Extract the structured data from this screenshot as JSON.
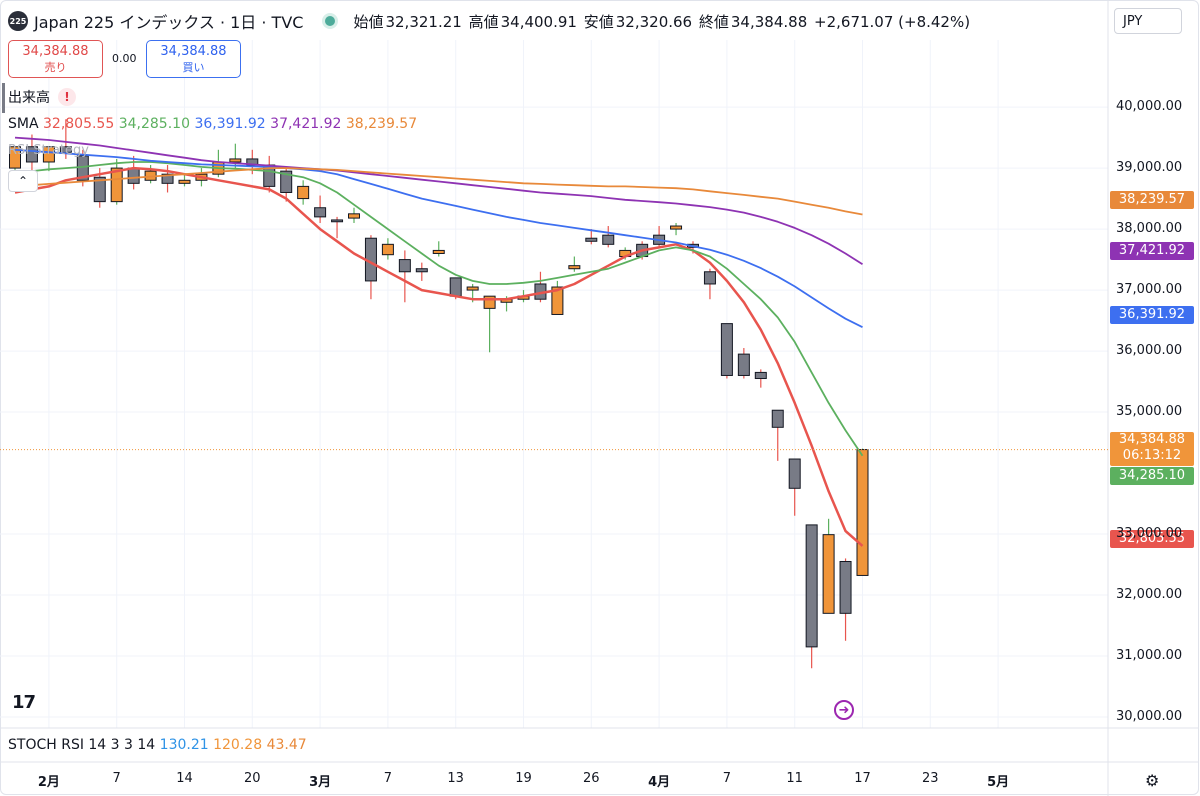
{
  "header": {
    "logo": "225",
    "title": "Japan 225 インデックス · 1日 · TVC",
    "open_label": "始値",
    "open": "32,321.21",
    "high_label": "高値",
    "high": "34,400.91",
    "low_label": "安値",
    "low": "32,320.66",
    "close_label": "終値",
    "close": "34,384.88",
    "change": "+2,671.07 (+8.42%)",
    "currency": "JPY"
  },
  "trade": {
    "sell_price": "34,384.88",
    "sell_label": "売り",
    "spread": "0.00",
    "buy_price": "34,384.88",
    "buy_label": "買い"
  },
  "indicators": {
    "volume_label": "出来高",
    "warning": "!",
    "sma_label": "SMA",
    "sma_values": [
      "32,805.55",
      "34,285.10",
      "36,391.92",
      "37,421.92",
      "38,239.57"
    ],
    "rsi_strategy_label": "RSI Strategy",
    "stoch_label": "STOCH RSI 14 3 3 14",
    "stoch_values": [
      "130.21",
      "120.28",
      "43.47"
    ]
  },
  "colors": {
    "sma1": "#e8554e",
    "sma2": "#5cb05f",
    "sma3": "#3d6ff0",
    "sma4": "#8e33b3",
    "sma5": "#e8893a",
    "up": "#f0953a",
    "down": "#787b86",
    "stoch1": "#2f93e6",
    "stoch2": "#f0953a",
    "stoch3": "#e8893a"
  },
  "price_labels": {
    "sma5": "38,239.57",
    "sma4": "37,421.92",
    "sma3": "36,391.92",
    "last": "34,384.88",
    "countdown": "06:13:12",
    "sma2": "34,285.10",
    "sma1": "32,805.55"
  },
  "chart_data": {
    "type": "candlestick",
    "y_ticks": [
      "40,000.00",
      "39,000.00",
      "38,000.00",
      "37,000.00",
      "36,000.00",
      "35,000.00",
      "33,000.00",
      "32,000.00",
      "31,000.00",
      "30,000.00"
    ],
    "y_tick_values": [
      40000,
      39000,
      38000,
      37000,
      36000,
      35000,
      33000,
      32000,
      31000,
      30000
    ],
    "x_ticks": [
      "2月",
      "7",
      "14",
      "20",
      "3月",
      "7",
      "13",
      "19",
      "26",
      "4月",
      "7",
      "11",
      "17",
      "23",
      "5月"
    ],
    "x_tick_index": [
      2,
      6,
      10,
      14,
      18,
      22,
      26,
      30,
      34,
      38,
      42,
      46,
      50,
      54,
      58
    ],
    "ylim": [
      29820,
      41100
    ],
    "candles": [
      {
        "o": 39000,
        "h": 39250,
        "c": 39350,
        "l": 38900
      },
      {
        "o": 39350,
        "h": 39550,
        "c": 39100,
        "l": 38950
      },
      {
        "o": 39100,
        "h": 39300,
        "c": 39350,
        "l": 38950
      },
      {
        "o": 39350,
        "h": 39800,
        "c": 39250,
        "l": 39150
      },
      {
        "o": 39200,
        "h": 39300,
        "c": 38800,
        "l": 38700
      },
      {
        "o": 38850,
        "h": 39000,
        "c": 38450,
        "l": 38350
      },
      {
        "o": 38450,
        "h": 39150,
        "c": 39000,
        "l": 38400
      },
      {
        "o": 39000,
        "h": 39200,
        "c": 38750,
        "l": 38650
      },
      {
        "o": 38800,
        "h": 39050,
        "c": 38950,
        "l": 38750
      },
      {
        "o": 38900,
        "h": 39050,
        "c": 38750,
        "l": 38600
      },
      {
        "o": 38750,
        "h": 38900,
        "c": 38800,
        "l": 38700
      },
      {
        "o": 38800,
        "h": 39000,
        "c": 38900,
        "l": 38700
      },
      {
        "o": 38900,
        "h": 39300,
        "c": 39100,
        "l": 38850
      },
      {
        "o": 39100,
        "h": 39400,
        "c": 39150,
        "l": 39000
      },
      {
        "o": 39150,
        "h": 39300,
        "c": 39050,
        "l": 38900
      },
      {
        "o": 39050,
        "h": 39200,
        "c": 38700,
        "l": 38600
      },
      {
        "o": 38950,
        "h": 39000,
        "c": 38600,
        "l": 38450
      },
      {
        "o": 38500,
        "h": 38800,
        "c": 38700,
        "l": 38400
      },
      {
        "o": 38350,
        "h": 38550,
        "c": 38200,
        "l": 38100
      },
      {
        "o": 38150,
        "h": 38200,
        "c": 38120,
        "l": 37850
      },
      {
        "o": 38180,
        "h": 38350,
        "c": 38250,
        "l": 38100
      },
      {
        "o": 37850,
        "h": 37900,
        "c": 37150,
        "l": 36850
      },
      {
        "o": 37580,
        "h": 37850,
        "c": 37750,
        "l": 37500
      },
      {
        "o": 37500,
        "h": 37650,
        "c": 37300,
        "l": 36800
      },
      {
        "o": 37350,
        "h": 37450,
        "c": 37300,
        "l": 37150
      },
      {
        "o": 37600,
        "h": 37800,
        "c": 37650,
        "l": 37550
      },
      {
        "o": 37200,
        "h": 37200,
        "c": 36900,
        "l": 36850
      },
      {
        "o": 37000,
        "h": 37100,
        "c": 37050,
        "l": 36800
      },
      {
        "o": 36700,
        "h": 36900,
        "c": 36900,
        "l": 35980
      },
      {
        "o": 36800,
        "h": 36900,
        "c": 36850,
        "l": 36650
      },
      {
        "o": 36850,
        "h": 37000,
        "c": 36900,
        "l": 36800
      },
      {
        "o": 37100,
        "h": 37300,
        "c": 36850,
        "l": 36800
      },
      {
        "o": 36600,
        "h": 37150,
        "c": 37050,
        "l": 36600
      },
      {
        "o": 37350,
        "h": 37550,
        "c": 37400,
        "l": 37300
      },
      {
        "o": 37850,
        "h": 38000,
        "c": 37800,
        "l": 37750
      },
      {
        "o": 37900,
        "h": 38050,
        "c": 37750,
        "l": 37700
      },
      {
        "o": 37550,
        "h": 37700,
        "c": 37650,
        "l": 37500
      },
      {
        "o": 37750,
        "h": 37800,
        "c": 37550,
        "l": 37500
      },
      {
        "o": 37900,
        "h": 38050,
        "c": 37750,
        "l": 37700
      },
      {
        "o": 38000,
        "h": 38100,
        "c": 38050,
        "l": 37900
      },
      {
        "o": 37750,
        "h": 37800,
        "c": 37700,
        "l": 37600
      },
      {
        "o": 37300,
        "h": 37350,
        "c": 37100,
        "l": 36850
      },
      {
        "o": 36450,
        "h": 36450,
        "c": 35600,
        "l": 35550
      },
      {
        "o": 35950,
        "h": 36050,
        "c": 35600,
        "l": 35550
      },
      {
        "o": 35650,
        "h": 35700,
        "c": 35550,
        "l": 35400
      },
      {
        "o": 35030,
        "h": 35030,
        "c": 34750,
        "l": 34200
      },
      {
        "o": 34230,
        "h": 34230,
        "c": 33750,
        "l": 33300
      },
      {
        "o": 33150,
        "h": 33150,
        "c": 31150,
        "l": 30800
      },
      {
        "o": 31700,
        "h": 33250,
        "c": 32990,
        "l": 31700
      },
      {
        "o": 32550,
        "h": 32600,
        "c": 31700,
        "l": 31250
      },
      {
        "o": 32321.21,
        "h": 34400.91,
        "c": 34384.88,
        "l": 32320.66
      }
    ],
    "series": [
      {
        "name": "SMA",
        "color": "#e8554e",
        "values": [
          38600,
          38650,
          38700,
          38800,
          38850,
          38900,
          38950,
          39000,
          38980,
          38950,
          38900,
          38850,
          38800,
          38750,
          38700,
          38650,
          38500,
          38250,
          38000,
          37800,
          37600,
          37450,
          37300,
          37150,
          37000,
          36950,
          36900,
          36850,
          36850,
          36850,
          36900,
          36950,
          37000,
          37100,
          37250,
          37400,
          37550,
          37650,
          37700,
          37750,
          37650,
          37450,
          37150,
          36800,
          36350,
          35800,
          35150,
          34450,
          33700,
          33050,
          32805.55
        ]
      },
      {
        "name": "SMA",
        "color": "#5cb05f",
        "values": [
          38900,
          38950,
          38980,
          39000,
          39020,
          39050,
          39080,
          39100,
          39100,
          39080,
          39050,
          39020,
          39000,
          38990,
          38970,
          38950,
          38900,
          38850,
          38750,
          38600,
          38400,
          38200,
          38000,
          37800,
          37600,
          37400,
          37250,
          37150,
          37100,
          37100,
          37120,
          37150,
          37200,
          37250,
          37300,
          37350,
          37450,
          37550,
          37650,
          37700,
          37650,
          37550,
          37350,
          37100,
          36850,
          36550,
          36150,
          35650,
          35150,
          34700,
          34285.1
        ]
      },
      {
        "name": "SMA",
        "color": "#3d6ff0",
        "values": [
          39300,
          39280,
          39260,
          39240,
          39220,
          39200,
          39180,
          39150,
          39120,
          39100,
          39080,
          39060,
          39050,
          39040,
          39030,
          39020,
          39000,
          38980,
          38950,
          38900,
          38820,
          38740,
          38660,
          38580,
          38500,
          38440,
          38380,
          38320,
          38260,
          38200,
          38150,
          38100,
          38060,
          38020,
          37980,
          37940,
          37900,
          37860,
          37820,
          37780,
          37720,
          37660,
          37580,
          37480,
          37360,
          37220,
          37060,
          36880,
          36700,
          36530,
          36391.92
        ]
      },
      {
        "name": "SMA",
        "color": "#8e33b3",
        "values": [
          39500,
          39480,
          39460,
          39430,
          39400,
          39370,
          39330,
          39290,
          39250,
          39210,
          39170,
          39130,
          39100,
          39080,
          39060,
          39040,
          39020,
          39000,
          38980,
          38960,
          38930,
          38900,
          38870,
          38840,
          38810,
          38780,
          38750,
          38720,
          38690,
          38660,
          38630,
          38600,
          38580,
          38560,
          38540,
          38510,
          38480,
          38460,
          38440,
          38420,
          38390,
          38360,
          38320,
          38270,
          38200,
          38120,
          38020,
          37900,
          37760,
          37600,
          37421.92
        ]
      },
      {
        "name": "SMA",
        "color": "#e8893a",
        "values": [
          38700,
          38720,
          38740,
          38760,
          38780,
          38800,
          38820,
          38840,
          38860,
          38880,
          38900,
          38920,
          38940,
          38960,
          38980,
          39000,
          39000,
          38990,
          38980,
          38970,
          38950,
          38930,
          38910,
          38890,
          38870,
          38850,
          38830,
          38810,
          38790,
          38770,
          38750,
          38740,
          38730,
          38720,
          38710,
          38700,
          38700,
          38690,
          38680,
          38670,
          38650,
          38620,
          38590,
          38560,
          38530,
          38500,
          38450,
          38400,
          38350,
          38290,
          38239.57
        ]
      }
    ]
  }
}
